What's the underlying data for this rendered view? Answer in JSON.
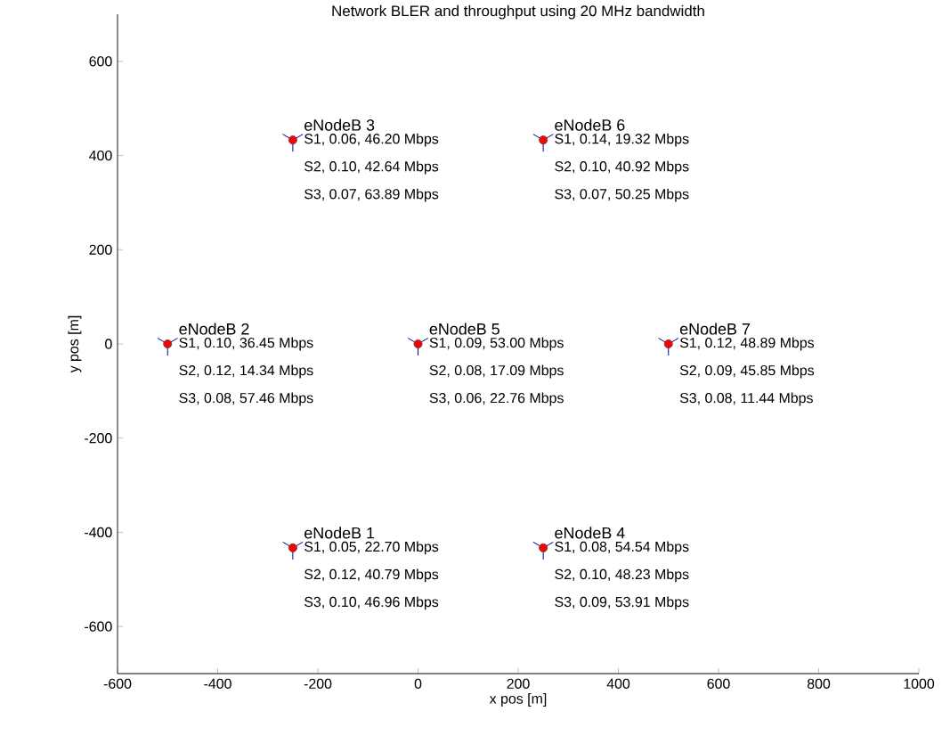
{
  "chart_data": {
    "type": "scatter",
    "title": "Network BLER and throughput using 20 MHz bandwidth",
    "xlabel": "x pos [m]",
    "ylabel": "y pos [m]",
    "x": [
      -250,
      -500,
      -250,
      250,
      0,
      250,
      500
    ],
    "series": [
      {
        "color": "#ff0000",
        "values": [
          -433,
          0,
          433,
          -433,
          0,
          433,
          0
        ]
      }
    ],
    "marker": "circle",
    "xlim": [
      -600,
      1000
    ],
    "xticks": [
      -600,
      -400,
      -200,
      0,
      200,
      400,
      600,
      800,
      1000
    ],
    "ylim": [
      -700,
      700
    ],
    "yticks": [
      -600,
      -400,
      -200,
      0,
      200,
      400,
      600
    ],
    "annotations": [
      {
        "text": "eNodeB 1",
        "x": -250,
        "y": -433
      },
      {
        "text": "S1, 0.05, 22.70 Mbps",
        "x": -250,
        "y": -433
      },
      "S2, 0.12, 40.79 Mbps",
      "S3, 0.10, 46.96 Mbps",
      {
        "text": "eNodeB 2",
        "x": -500,
        "y": 0
      },
      {
        "text": "S1, 0.10, 36.45 Mbps",
        "x": -500,
        "y": 0
      },
      "S2, 0.12, 14.34 Mbps",
      "S3, 0.08, 57.46 Mbps",
      {
        "text": "eNodeB 3",
        "x": -250,
        "y": 433
      },
      {
        "text": "S1, 0.06, 46.20 Mbps",
        "x": -250,
        "y": 433
      },
      "S2, 0.10, 42.64 Mbps",
      "S3, 0.07, 63.89 Mbps",
      {
        "text": "eNodeB 4",
        "x": 250,
        "y": -433
      },
      {
        "text": "S1, 0.08, 54.54 Mbps",
        "x": 250,
        "y": -433
      },
      "S2, 0.10, 48.23 Mbps",
      "S3, 0.09, 53.91 Mbps",
      {
        "text": "eNodeB 5",
        "x": 0,
        "y": 0
      },
      {
        "text": "S1, 0.09, 53.00 Mbps",
        "x": 0,
        "y": 0
      },
      "S2, 0.08, 17.09 Mbps",
      "S3, 0.06, 22.76 Mbps",
      {
        "text": "eNodeB 6",
        "x": 250,
        "y": 433
      },
      {
        "text": "S1, 0.14, 19.32 Mbps",
        "x": 250,
        "y": 433
      },
      "S2, 0.10, 40.92 Mbps",
      "S3, 0.07, 50.25 Mbps",
      {
        "text": "eNodeB 7",
        "x": 500,
        "y": 0
      },
      {
        "text": "S1, 0.12, 48.89 Mbps",
        "x": 500,
        "y": 0
      },
      "S2, 0.09, 45.85 Mbps",
      "S3, 0.08, 11.44 Mbps"
    ]
  }
}
